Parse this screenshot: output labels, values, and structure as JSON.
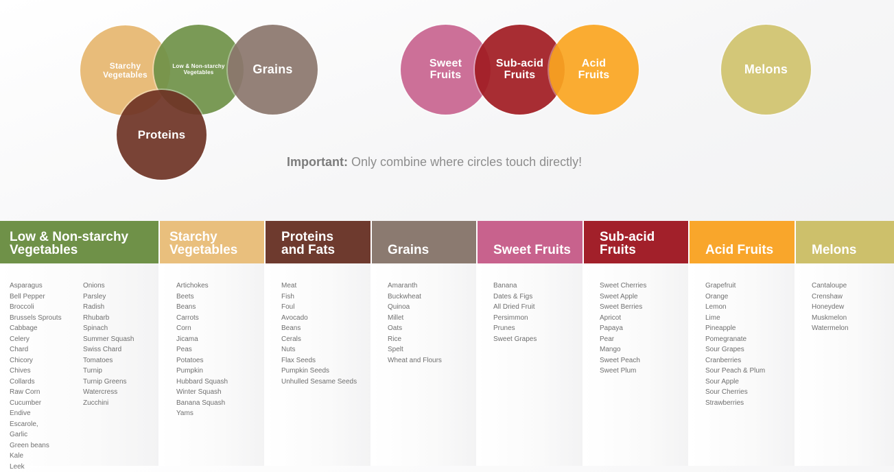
{
  "diagram": {
    "circles": {
      "starchy": {
        "label": "Starchy\nVegetables",
        "color": "#e6b66f"
      },
      "low_non_starchy": {
        "label": "Low & Non-starchy\nVegetables",
        "color": "#6f9148"
      },
      "grains": {
        "label": "Grains",
        "color": "#8b766c"
      },
      "proteins": {
        "label": "Proteins",
        "color": "#6e3325"
      },
      "sweet_fruits": {
        "label": "Sweet\nFruits",
        "color": "#c8648f"
      },
      "sub_acid_fruits": {
        "label": "Sub-acid\nFruits",
        "color": "#a11b22"
      },
      "acid_fruits": {
        "label": "Acid\nFruits",
        "color": "#faa521"
      },
      "melons": {
        "label": "Melons",
        "color": "#cfc26d"
      }
    },
    "important_label": "Important:",
    "important_text": "Only combine where circles touch directly!"
  },
  "table": {
    "columns": [
      {
        "title": "Low & Non-starchy\nVegetables",
        "color": "#6f9148",
        "items_left": [
          "Asparagus",
          "Bell Pepper",
          "Broccoli",
          "Brussels Sprouts",
          "Cabbage",
          "Celery",
          "Chard",
          "Chicory",
          "Chives",
          "Collards",
          "Raw Corn",
          "Cucumber",
          "Endive",
          "Escarole,",
          "Garlic",
          "Green beans",
          "Kale",
          "Leek"
        ],
        "items_right": [
          "Onions",
          "Parsley",
          "Radish",
          "Rhubarb",
          "Spinach",
          "Summer Squash",
          "Swiss Chard",
          "Tomatoes",
          "Turnip",
          "Turnip Greens",
          "Watercress",
          "Zucchini"
        ]
      },
      {
        "title": "Starchy\nVegetables",
        "color": "#e9bf7d",
        "items": [
          "Artichokes",
          "Beets",
          "Beans",
          "Carrots",
          "Corn",
          "Jicama",
          "Peas",
          "Potatoes",
          "Pumpkin",
          "Hubbard Squash",
          "Winter Squash",
          "Banana Squash",
          "Yams"
        ]
      },
      {
        "title": "Proteins\nand Fats",
        "color": "#6e3a2e",
        "items": [
          "Meat",
          "Fish",
          "Foul",
          "Avocado",
          "Beans",
          "Cerals",
          "Nuts",
          "Flax Seeds",
          "Pumpkin Seeds",
          "Unhulled Sesame Seeds"
        ]
      },
      {
        "title": "Grains",
        "color": "#8b7a70",
        "items": [
          "Amaranth",
          "Buckwheat",
          "Quinoa",
          "Millet",
          "Oats",
          "Rice",
          "Spelt",
          "Wheat and Flours"
        ]
      },
      {
        "title": "Sweet Fruits",
        "color": "#c8628d",
        "items": [
          "Banana",
          "Dates & Figs",
          "All Dried Fruit",
          "Persimmon",
          "Prunes",
          "Sweet Grapes"
        ]
      },
      {
        "title": "Sub-acid\nFruits",
        "color": "#a2202a",
        "items": [
          "Sweet Cherries",
          "Sweet Apple",
          "Sweet Berries",
          "Apricot",
          "Papaya",
          "Pear",
          "Mango",
          "Sweet Peach",
          "Sweet Plum"
        ]
      },
      {
        "title": "Acid Fruits",
        "color": "#f9a62b",
        "items": [
          "Grapefruit",
          "Orange",
          "Lemon",
          "Lime",
          "Pineapple",
          "Pomegranate",
          "Sour Grapes",
          "Cranberries",
          "Sour Peach & Plum",
          "Sour Apple",
          "Sour Cherries",
          "Strawberries"
        ]
      },
      {
        "title": "Melons",
        "color": "#cdc06b",
        "items": [
          "Cantaloupe",
          "Crenshaw",
          "Honeydew",
          "Muskmelon",
          "Watermelon"
        ]
      }
    ]
  }
}
